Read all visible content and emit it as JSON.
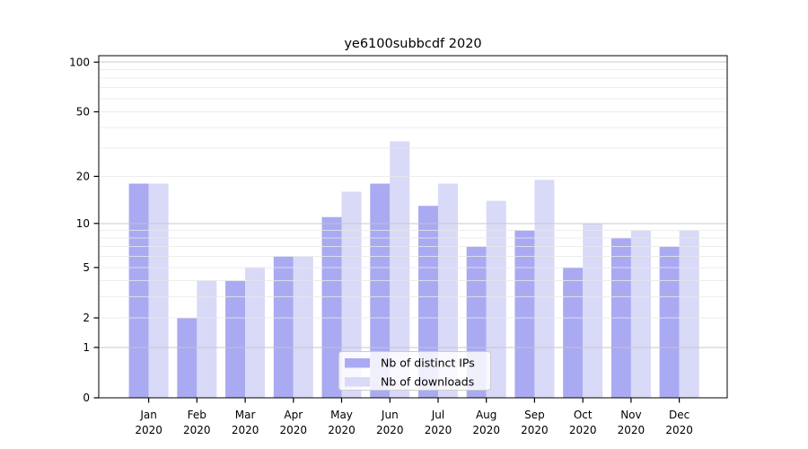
{
  "page": {
    "background_color": "#ffffff"
  },
  "chart_data": {
    "type": "bar",
    "title": "ye6100subbcdf 2020",
    "xlabel": "",
    "ylabel": "",
    "categories": [
      "Jan 2020",
      "Feb 2020",
      "Mar 2020",
      "Apr 2020",
      "May 2020",
      "Jun 2020",
      "Jul 2020",
      "Aug 2020",
      "Sep 2020",
      "Oct 2020",
      "Nov 2020",
      "Dec 2020"
    ],
    "series": [
      {
        "name": "Nb of distinct IPs",
        "color": "#aaaaf2",
        "values": [
          18,
          2,
          4,
          6,
          11,
          18,
          13,
          7,
          9,
          5,
          8,
          7
        ]
      },
      {
        "name": "Nb of downloads",
        "color": "#d9d9f8",
        "values": [
          18,
          4,
          5,
          6,
          16,
          33,
          18,
          14,
          19,
          10,
          9,
          9
        ]
      }
    ],
    "yscale": "log1p",
    "ylim": [
      0,
      110
    ],
    "yticks": [
      0,
      1,
      2,
      5,
      10,
      20,
      50,
      100
    ],
    "grid_major": [
      1,
      10,
      100
    ],
    "grid_minor": [
      2,
      3,
      4,
      5,
      6,
      7,
      8,
      9,
      20,
      30,
      40,
      50,
      60,
      70,
      80,
      90
    ],
    "legend_position": "lower center",
    "colors": {
      "grid_minor": "#e9e9e9",
      "grid_major": "#c4c4c4",
      "axis": "#000000",
      "legend_border": "#cccccc"
    }
  }
}
